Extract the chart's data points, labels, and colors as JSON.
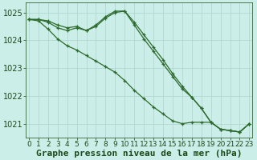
{
  "x": [
    0,
    1,
    2,
    3,
    4,
    5,
    6,
    7,
    8,
    9,
    10,
    11,
    12,
    13,
    14,
    15,
    16,
    17,
    18,
    19,
    20,
    21,
    22,
    23
  ],
  "series1": [
    1024.75,
    1024.75,
    1024.7,
    1024.55,
    1024.45,
    1024.5,
    1024.35,
    1024.55,
    1024.85,
    1025.05,
    1025.05,
    1024.65,
    1024.2,
    1023.75,
    1023.3,
    1022.8,
    1022.35,
    1021.95,
    1021.55,
    1021.05,
    1020.8,
    1020.75,
    1020.7,
    1021.0
  ],
  "series2": [
    1024.75,
    1024.75,
    1024.65,
    1024.45,
    1024.35,
    1024.45,
    1024.35,
    1024.5,
    1024.8,
    1025.0,
    1025.05,
    1024.55,
    1024.05,
    1023.6,
    1023.15,
    1022.7,
    1022.25,
    1021.95,
    1021.55,
    1021.05,
    1020.8,
    1020.75,
    1020.7,
    1021.0
  ],
  "series3": [
    1024.75,
    1024.7,
    1024.4,
    1024.05,
    1023.8,
    1023.65,
    1023.45,
    1023.25,
    1023.05,
    1022.85,
    1022.55,
    1022.2,
    1021.9,
    1021.6,
    1021.35,
    1021.1,
    1021.0,
    1021.05,
    1021.05,
    1021.05,
    1020.8,
    1020.75,
    1020.7,
    1021.0
  ],
  "line_color": "#2d6a2d",
  "bg_color": "#cceee8",
  "grid_color": "#aad4cc",
  "xlabel": "Graphe pression niveau de la mer (hPa)",
  "xlabel_color": "#1a4a1a",
  "tick_color": "#1a4a1a",
  "ylim": [
    1020.5,
    1025.35
  ],
  "yticks": [
    1021,
    1022,
    1023,
    1024,
    1025
  ],
  "axis_fontsize": 7.0,
  "xlabel_fontsize": 8.0
}
